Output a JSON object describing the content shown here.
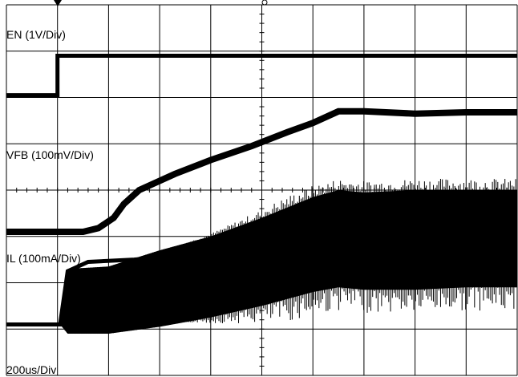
{
  "chart_data": {
    "type": "line",
    "labels": {
      "en": "EN (1V/Div)",
      "vfb": "VFB (100mV/Div)",
      "il": "IL (100mA/Div)",
      "timebase": "200us/Div"
    },
    "grid": true,
    "divisions": {
      "x": 10,
      "y": 8
    },
    "series": [
      {
        "name": "EN (1V/Div)",
        "color": "#000000",
        "points": [
          [
            0,
            1.95
          ],
          [
            1.0,
            1.95
          ],
          [
            1.0,
            1.1
          ],
          [
            10,
            1.1
          ]
        ]
      },
      {
        "name": "VFB (100mV/Div)",
        "color": "#000000",
        "points": [
          [
            0,
            4.9
          ],
          [
            1.5,
            4.9
          ],
          [
            1.8,
            4.82
          ],
          [
            2.1,
            4.6
          ],
          [
            2.3,
            4.3
          ],
          [
            2.6,
            4.0
          ],
          [
            3.3,
            3.65
          ],
          [
            4.0,
            3.35
          ],
          [
            4.8,
            3.05
          ],
          [
            5.5,
            2.75
          ],
          [
            6.0,
            2.55
          ],
          [
            6.5,
            2.3
          ],
          [
            7.0,
            2.3
          ],
          [
            8.0,
            2.35
          ],
          [
            9.0,
            2.32
          ],
          [
            10,
            2.32
          ]
        ]
      },
      {
        "name": "IL (100mA/Div)",
        "color": "#000000",
        "points": [
          [
            0,
            6.9
          ],
          [
            1.05,
            6.9
          ],
          [
            1.2,
            5.75
          ],
          [
            1.6,
            5.55
          ],
          [
            2.5,
            5.5
          ],
          [
            3.5,
            5.4
          ],
          [
            4.5,
            5.35
          ],
          [
            5.5,
            5.3
          ],
          [
            6.5,
            5.2
          ],
          [
            7.5,
            5.15
          ],
          [
            8.5,
            5.1
          ],
          [
            10,
            5.1
          ]
        ],
        "envelope_top": [
          [
            1.05,
            6.9
          ],
          [
            1.2,
            5.7
          ],
          [
            2.0,
            5.65
          ],
          [
            3.0,
            5.3
          ],
          [
            4.0,
            5.0
          ],
          [
            5.0,
            4.6
          ],
          [
            6.0,
            4.15
          ],
          [
            6.5,
            4.0
          ],
          [
            7.0,
            4.05
          ],
          [
            8.0,
            4.0
          ],
          [
            9.0,
            4.0
          ],
          [
            10,
            4.0
          ]
        ],
        "envelope_bottom": [
          [
            1.05,
            6.9
          ],
          [
            1.2,
            7.1
          ],
          [
            2.0,
            7.1
          ],
          [
            3.0,
            6.95
          ],
          [
            4.0,
            6.75
          ],
          [
            5.0,
            6.5
          ],
          [
            6.0,
            6.2
          ],
          [
            6.5,
            6.1
          ],
          [
            7.0,
            6.15
          ],
          [
            8.0,
            6.15
          ],
          [
            9.0,
            6.1
          ],
          [
            10,
            6.1
          ]
        ]
      }
    ]
  }
}
